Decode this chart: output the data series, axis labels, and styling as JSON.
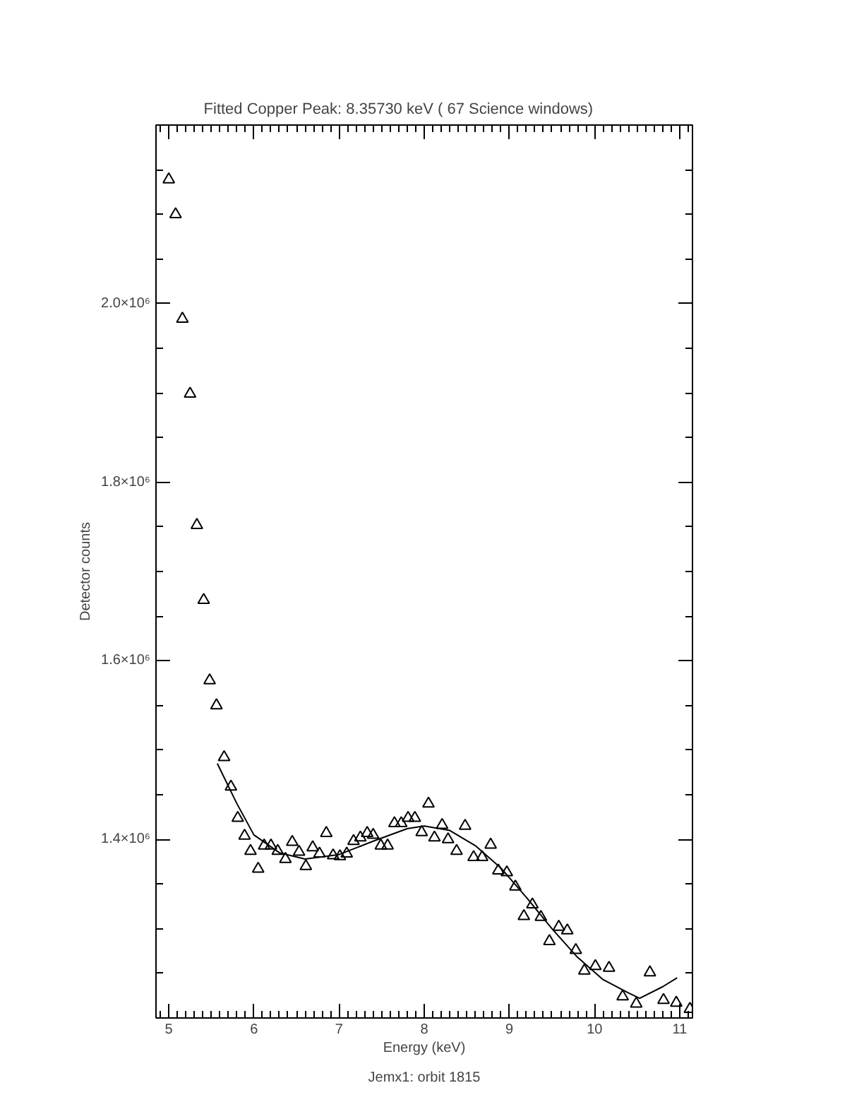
{
  "chart_data": {
    "type": "scatter",
    "title": "Fitted Copper Peak:        8.35730 keV (      67 Science windows)",
    "xlabel": "Energy (keV)",
    "ylabel": "Detector counts",
    "annotations": [
      "Jemx1: orbit 1815"
    ],
    "xlim": [
      4.85,
      11.15
    ],
    "xticks": [
      5,
      6,
      7,
      8,
      9,
      10,
      11
    ],
    "ylim": [
      1200000,
      2200000
    ],
    "yticks": [
      {
        "value": 1400000,
        "label": "1.4×10⁶"
      },
      {
        "value": 1600000,
        "label": "1.6×10⁶"
      },
      {
        "value": 1800000,
        "label": "1.8×10⁶"
      },
      {
        "value": 2000000,
        "label": "2.0×10⁶"
      }
    ],
    "grid": false,
    "series": [
      {
        "marker": "triangle",
        "color": "#000000",
        "x": [
          5.0,
          5.08,
          5.16,
          5.25,
          5.33,
          5.41,
          5.48,
          5.56,
          5.65,
          5.73,
          5.81,
          5.89,
          5.96,
          6.05,
          6.12,
          6.2,
          6.28,
          6.37,
          6.45,
          6.53,
          6.61,
          6.69,
          6.77,
          6.85,
          6.93,
          7.01,
          7.09,
          7.17,
          7.25,
          7.33,
          7.4,
          7.49,
          7.57,
          7.65,
          7.73,
          7.81,
          7.89,
          7.97,
          8.05,
          8.12,
          8.21,
          8.28,
          8.38,
          8.48,
          8.58,
          8.68,
          8.78,
          8.87,
          8.97,
          9.07,
          9.17,
          9.27,
          9.37,
          9.47,
          9.58,
          9.68,
          9.78,
          9.88,
          10.01,
          10.17,
          10.33,
          10.49,
          10.65,
          10.81,
          10.96,
          11.12
        ],
        "values": [
          2139000,
          2100000,
          1983000,
          1899000,
          1752000,
          1668000,
          1578000,
          1550000,
          1492000,
          1459000,
          1424000,
          1404000,
          1387000,
          1367000,
          1393000,
          1393000,
          1387000,
          1378000,
          1397000,
          1386000,
          1370000,
          1391000,
          1384000,
          1407000,
          1382000,
          1381000,
          1384000,
          1398000,
          1402000,
          1407000,
          1405000,
          1393000,
          1393000,
          1418000,
          1418000,
          1424000,
          1424000,
          1408000,
          1440000,
          1402000,
          1416000,
          1400000,
          1387000,
          1415000,
          1380000,
          1380000,
          1394000,
          1365000,
          1363000,
          1347000,
          1314000,
          1327000,
          1313000,
          1286000,
          1302000,
          1298000,
          1276000,
          1253000,
          1258000,
          1256000,
          1224000,
          1216000,
          1251000,
          1220000,
          1217000,
          1210000
        ]
      },
      {
        "type": "line",
        "marker": "none",
        "line_style": "solid",
        "color": "#000000",
        "x": [
          5.57,
          5.8,
          6.0,
          6.3,
          6.6,
          7.0,
          7.4,
          7.8,
          8.0,
          8.3,
          8.6,
          8.9,
          9.2,
          9.5,
          9.8,
          10.1,
          10.4,
          10.53,
          10.8,
          10.97
        ],
        "values": [
          1485000,
          1440000,
          1405000,
          1385000,
          1378000,
          1383000,
          1398000,
          1412000,
          1415000,
          1410000,
          1393000,
          1368000,
          1335000,
          1300000,
          1268000,
          1243000,
          1228000,
          1222000,
          1235000,
          1245000
        ]
      }
    ]
  }
}
